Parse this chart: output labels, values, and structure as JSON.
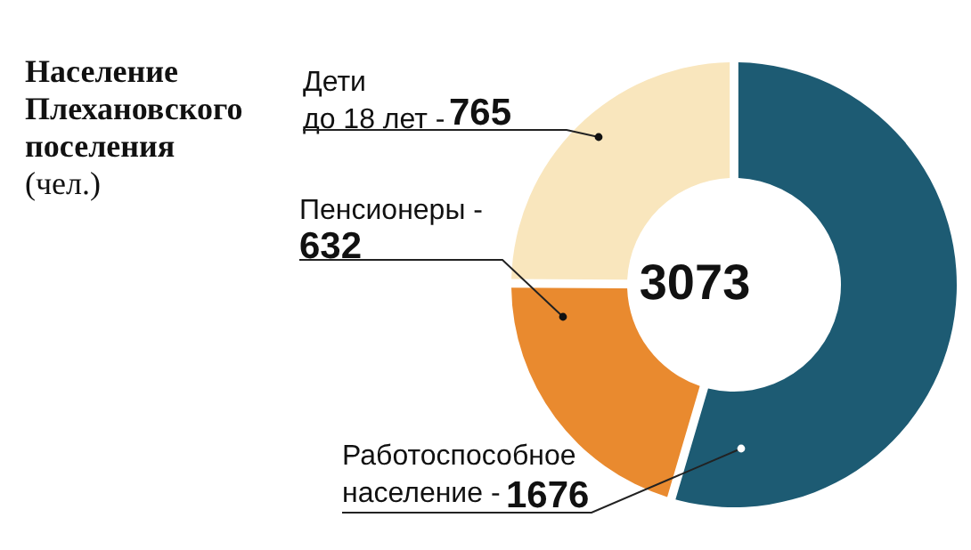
{
  "chart_data": {
    "type": "donut",
    "title": "Население Плехановского поселения",
    "subtitle": "(чел.)",
    "categories": [
      "Работоспособное\nнаселение -",
      "Пенсионеры -",
      "Дети\nдо 18 лет -"
    ],
    "values": [
      1676,
      632,
      765
    ],
    "colors": [
      "#1d5b73",
      "#e98a2f",
      "#f9e6bd"
    ],
    "data_labels": true,
    "annotations": [
      "3073"
    ]
  }
}
